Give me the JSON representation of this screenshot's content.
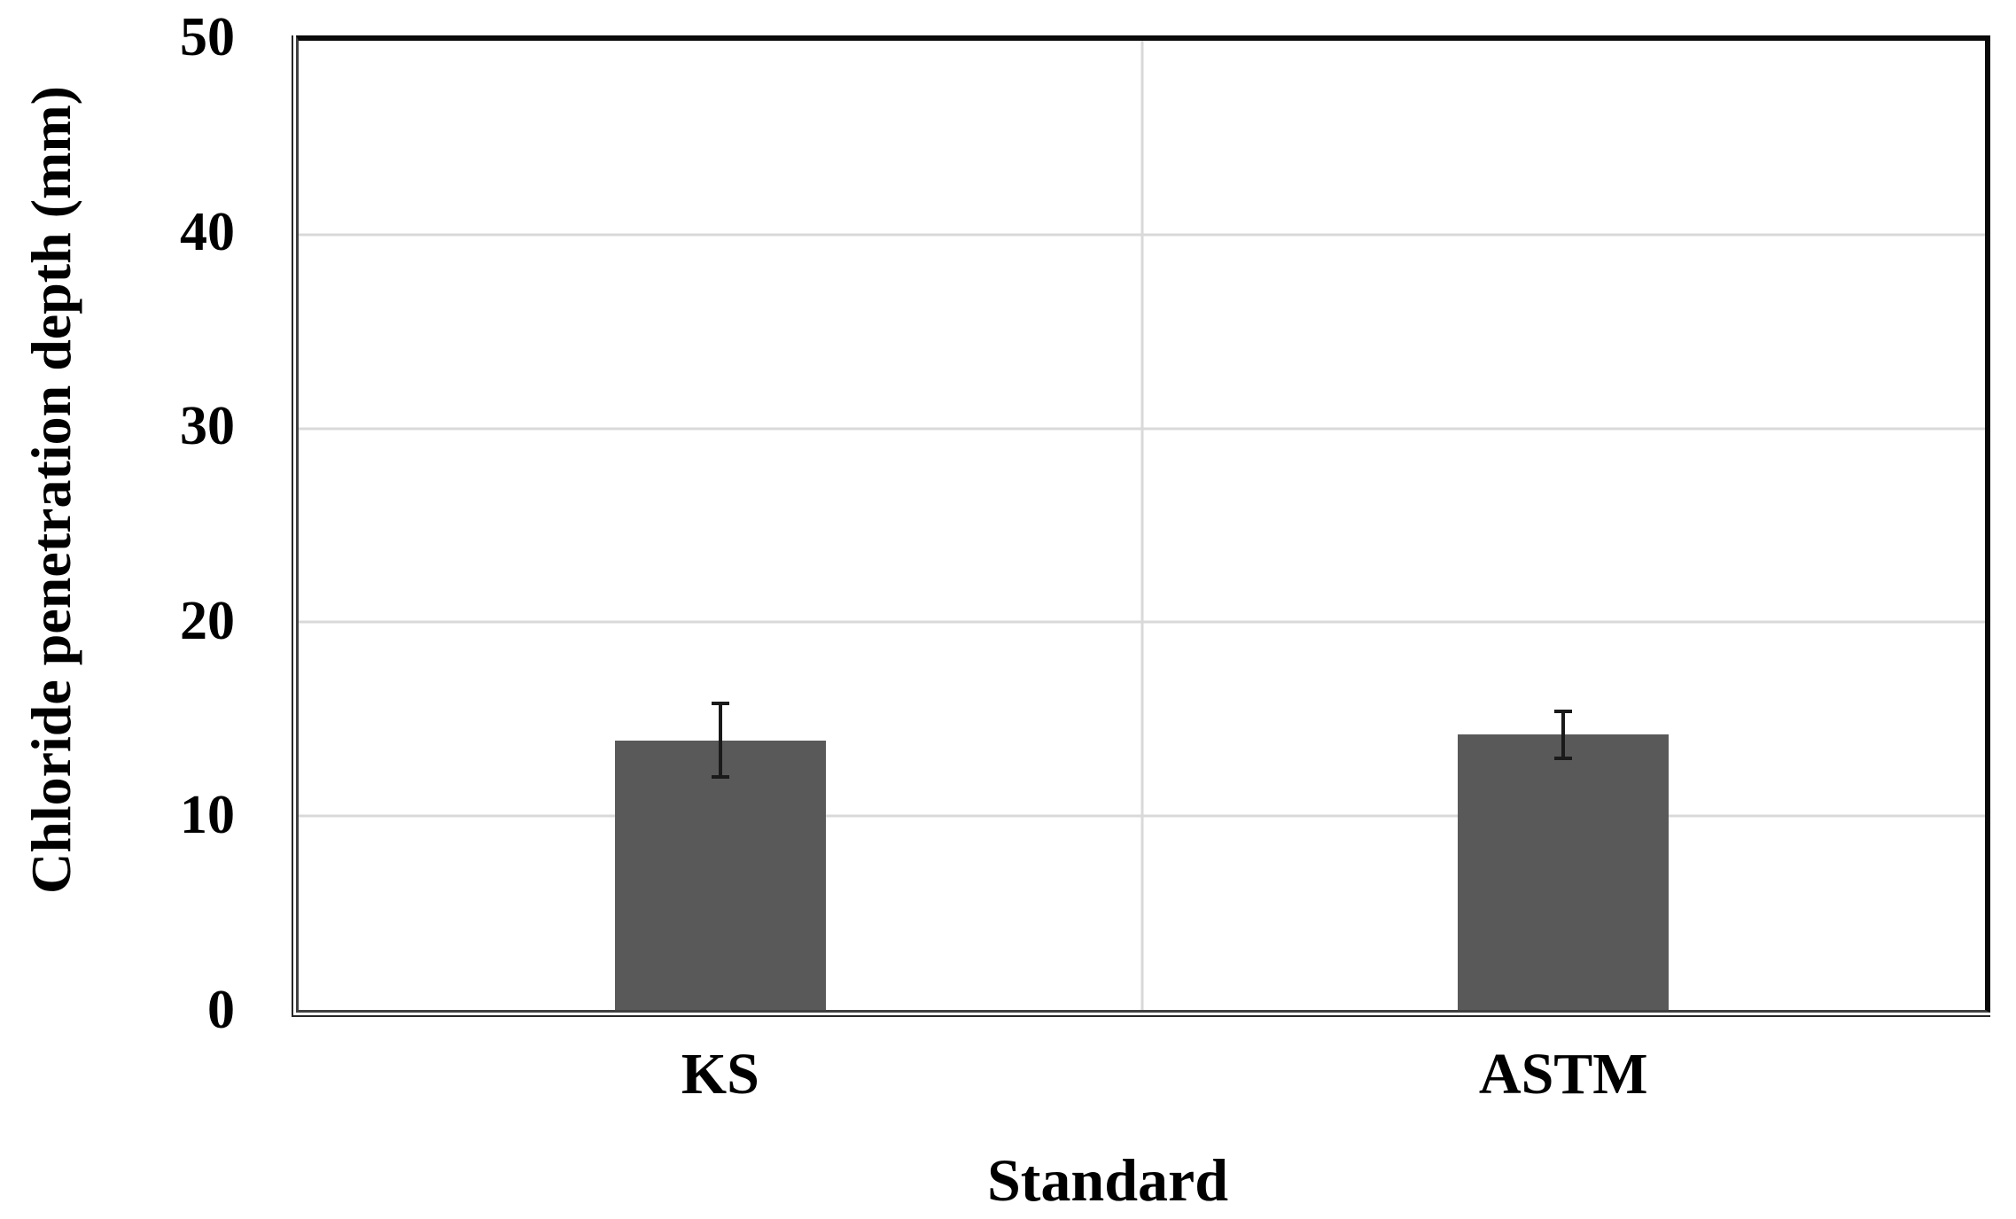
{
  "page": {
    "background": "#ffffff"
  },
  "chart_data": {
    "type": "bar",
    "title": "",
    "categories": [
      "KS",
      "ASTM"
    ],
    "values": [
      13.9,
      14.2
    ],
    "error_bars": [
      1.9,
      1.2
    ],
    "xlabel": "Standard",
    "ylabel": "Chloride penetration depth (mm)",
    "ylim": [
      0,
      50
    ],
    "yticks": [
      0,
      10,
      20,
      30,
      40,
      50
    ],
    "grid": "horizontal major gridlines + one vertical gridline at category boundary",
    "legend_position": "none",
    "colors": {
      "bar_fill": "#595959",
      "gridline": "#d9d9d9",
      "plot_border": "#0a0a0a",
      "axis_line": "#404040",
      "error_bar": "#1a1a1a",
      "text": "#000000"
    }
  }
}
